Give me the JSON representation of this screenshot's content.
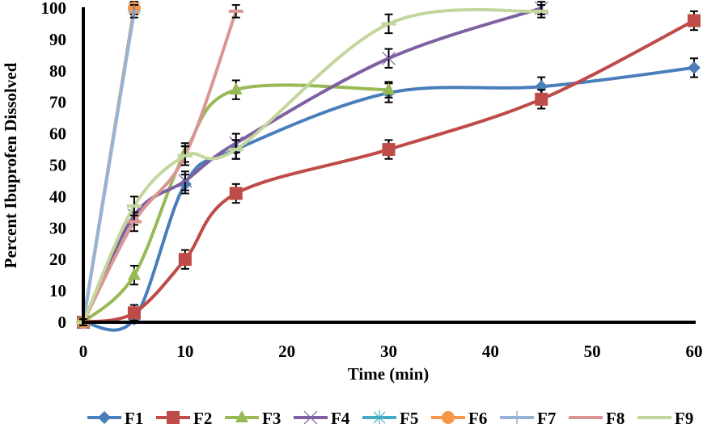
{
  "chart_data": {
    "type": "line",
    "title": "",
    "xlabel": "Time (min)",
    "ylabel": "Percent Ibuprofen Dissolved",
    "xlim": [
      0,
      60
    ],
    "ylim": [
      0,
      100
    ],
    "x_ticks": [
      0,
      10,
      20,
      30,
      40,
      50,
      60
    ],
    "y_ticks": [
      0,
      10,
      20,
      30,
      40,
      50,
      60,
      70,
      80,
      90,
      100
    ],
    "grid": false,
    "legend_position": "bottom",
    "smoothed": true,
    "error_bars": true,
    "series": [
      {
        "name": "F1",
        "color": "#4a7ebb",
        "marker": "diamond",
        "x": [
          0,
          5,
          10,
          15,
          30,
          45,
          60
        ],
        "y": [
          0,
          1,
          44,
          55,
          73,
          75,
          81
        ],
        "err": [
          1,
          1,
          3,
          3,
          3,
          3,
          3
        ]
      },
      {
        "name": "F2",
        "color": "#be4b48",
        "marker": "square",
        "x": [
          0,
          5,
          10,
          15,
          30,
          45,
          60
        ],
        "y": [
          0,
          3,
          20,
          41,
          55,
          71,
          96
        ],
        "err": [
          1,
          2.5,
          3,
          3,
          3,
          3,
          3
        ]
      },
      {
        "name": "F3",
        "color": "#98b954",
        "marker": "triangle",
        "x": [
          0,
          5,
          10,
          15,
          30
        ],
        "y": [
          0,
          15,
          54,
          74,
          74
        ],
        "err": [
          1,
          3,
          3,
          3,
          2.5
        ]
      },
      {
        "name": "F4",
        "color": "#7d60a0",
        "marker": "x",
        "x": [
          0,
          5,
          10,
          15,
          30,
          45
        ],
        "y": [
          0,
          34,
          45,
          57,
          84,
          100
        ],
        "err": [
          1,
          3,
          3,
          3,
          3,
          2
        ]
      },
      {
        "name": "F5",
        "color": "#46aac5",
        "marker": "star",
        "x": [
          0,
          5
        ],
        "y": [
          0,
          100
        ],
        "err": [
          1,
          2
        ]
      },
      {
        "name": "F6",
        "color": "#f79646",
        "marker": "circle",
        "x": [
          0,
          5
        ],
        "y": [
          0,
          100
        ],
        "err": [
          1,
          2
        ]
      },
      {
        "name": "F7",
        "color": "#95b3d7",
        "marker": "plus",
        "x": [
          0,
          5
        ],
        "y": [
          0,
          99
        ],
        "err": [
          1,
          2
        ]
      },
      {
        "name": "F8",
        "color": "#d99694",
        "marker": "dash",
        "x": [
          0,
          5,
          10,
          15
        ],
        "y": [
          0,
          32,
          53,
          99
        ],
        "err": [
          1,
          3,
          3,
          2
        ]
      },
      {
        "name": "F9",
        "color": "#c3d69b",
        "marker": "dash",
        "x": [
          0,
          5,
          10,
          15,
          30,
          45
        ],
        "y": [
          0,
          37,
          53,
          55,
          95,
          99
        ],
        "err": [
          1,
          3,
          3,
          3,
          3,
          2
        ]
      }
    ]
  }
}
